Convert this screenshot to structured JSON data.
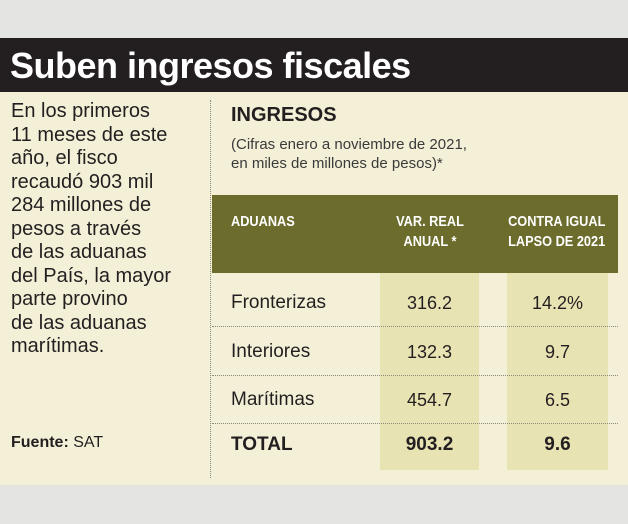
{
  "headline": "Suben ingresos fiscales",
  "lead_lines": [
    "En los primeros",
    "11 meses de este",
    "año, el fisco",
    "recaudó 903 mil",
    "284 millones de",
    "pesos a través",
    "de las aduanas",
    "del País, la mayor",
    "parte provino",
    "de las aduanas",
    "marítimas."
  ],
  "source": {
    "label": "Fuente:",
    "value": "SAT"
  },
  "section": {
    "title": "INGRESOS",
    "note_lines": [
      "(Cifras enero a noviembre de 2021,",
      "en miles de millones de pesos)*"
    ]
  },
  "table": {
    "headers": {
      "name": "ADUANAS",
      "var_lines": [
        "VAR. REAL",
        "ANUAL *"
      ],
      "lapse_lines": [
        "CONTRA IGUAL",
        "LAPSO DE 2021"
      ]
    },
    "rows": [
      {
        "name": "Fronterizas",
        "var": "316.2",
        "lapse": "14.2%"
      },
      {
        "name": "Interiores",
        "var": "132.3",
        "lapse": "9.7"
      },
      {
        "name": "Marítimas",
        "var": "454.7",
        "lapse": "6.5"
      }
    ],
    "total": {
      "name": "TOTAL",
      "var": "903.2",
      "lapse": "9.6"
    }
  },
  "colors": {
    "headline_bar": "#231f20",
    "card_background": "#f4f0d7",
    "table_header": "#6c6c2d",
    "highlight_column": "#e8e3b3"
  }
}
